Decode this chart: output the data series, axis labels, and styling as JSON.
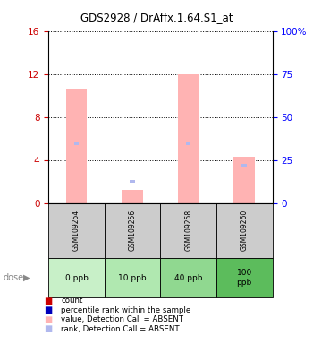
{
  "title": "GDS2928 / DrAffx.1.64.S1_at",
  "samples": [
    "GSM109254",
    "GSM109256",
    "GSM109258",
    "GSM109260"
  ],
  "doses": [
    "0 ppb",
    "10 ppb",
    "40 ppb",
    "100\nppb"
  ],
  "bar_values": [
    10.6,
    1.2,
    12.0,
    4.3
  ],
  "rank_values": [
    5.5,
    2.0,
    5.5,
    3.5
  ],
  "bar_color_absent": "#ffb3b3",
  "rank_color_absent": "#b0b8ee",
  "ylim_left": [
    0,
    16
  ],
  "ylim_right": [
    0,
    100
  ],
  "yticks_left": [
    0,
    4,
    8,
    12,
    16
  ],
  "yticks_right": [
    0,
    25,
    50,
    75,
    100
  ],
  "dose_bg_colors": [
    "#c8f0c8",
    "#b0e8b0",
    "#90d890",
    "#5cbc5c"
  ],
  "sample_bg_color": "#cccccc",
  "legend_items": [
    {
      "color": "#cc0000",
      "label": "count"
    },
    {
      "color": "#0000bb",
      "label": "percentile rank within the sample"
    },
    {
      "color": "#ffb3b3",
      "label": "value, Detection Call = ABSENT"
    },
    {
      "color": "#b0b8ee",
      "label": "rank, Detection Call = ABSENT"
    }
  ]
}
